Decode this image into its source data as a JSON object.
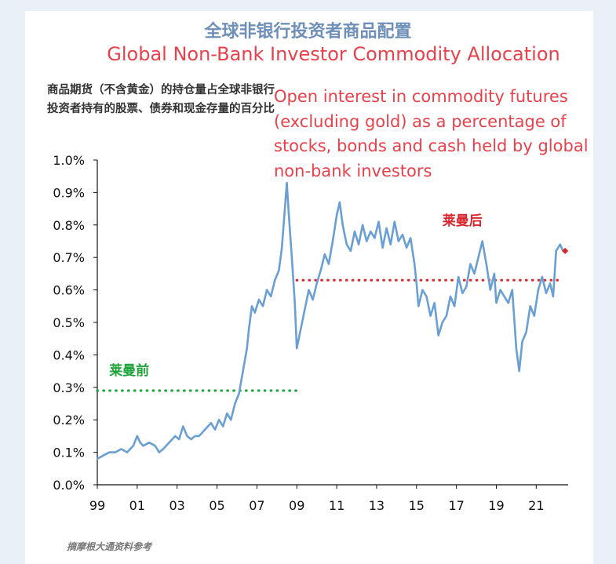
{
  "chart_data": {
    "type": "line",
    "title": "全球非银行投资者商品配置",
    "title_en": "Global Non-Bank Investor Commodity Allocation",
    "ylabel": "商品期货（不含黄金）的持仓量占全球非银行投资者持有的股票、债券和现金存量的百分比",
    "ylabel_en": "Open interest in commodity futures (excluding gold) as a percentage of stocks, bonds and cash held by global non-bank investors",
    "source": "摘摩根大通资料参考",
    "xlim": [
      1999,
      2022.6
    ],
    "ylim": [
      0.0,
      1.0
    ],
    "x_ticks": [
      "99",
      "01",
      "03",
      "05",
      "07",
      "09",
      "11",
      "13",
      "15",
      "17",
      "19",
      "21"
    ],
    "y_ticks": [
      "0.0%",
      "0.1%",
      "0.2%",
      "0.3%",
      "0.4%",
      "0.5%",
      "0.6%",
      "0.7%",
      "0.8%",
      "0.9%",
      "1.0%"
    ],
    "grid": false,
    "series": [
      {
        "color": "#6a9fd4",
        "x": [
          1999.0,
          1999.3,
          1999.6,
          1999.9,
          2000.2,
          2000.5,
          2000.8,
          2001.0,
          2001.15,
          2001.3,
          2001.6,
          2001.9,
          2002.1,
          2002.3,
          2002.6,
          2002.9,
          2003.1,
          2003.3,
          2003.5,
          2003.7,
          2003.9,
          2004.1,
          2004.4,
          2004.7,
          2004.9,
          2005.1,
          2005.3,
          2005.5,
          2005.7,
          2005.9,
          2006.1,
          2006.3,
          2006.5,
          2006.6,
          2006.75,
          2006.9,
          2007.1,
          2007.3,
          2007.5,
          2007.7,
          2007.9,
          2008.1,
          2008.25,
          2008.4,
          2008.5,
          2008.6,
          2008.75,
          2008.9,
          2009.0,
          2009.2,
          2009.4,
          2009.6,
          2009.8,
          2010.0,
          2010.2,
          2010.4,
          2010.6,
          2010.8,
          2011.0,
          2011.15,
          2011.3,
          2011.5,
          2011.7,
          2011.9,
          2012.1,
          2012.3,
          2012.5,
          2012.7,
          2012.9,
          2013.1,
          2013.3,
          2013.5,
          2013.7,
          2013.9,
          2014.1,
          2014.3,
          2014.5,
          2014.7,
          2014.9,
          2015.0,
          2015.1,
          2015.3,
          2015.5,
          2015.7,
          2015.9,
          2016.1,
          2016.3,
          2016.5,
          2016.7,
          2016.9,
          2017.1,
          2017.3,
          2017.5,
          2017.7,
          2017.9,
          2018.1,
          2018.3,
          2018.5,
          2018.7,
          2018.9,
          2019.0,
          2019.2,
          2019.4,
          2019.6,
          2019.8,
          2020.0,
          2020.15,
          2020.3,
          2020.5,
          2020.7,
          2020.9,
          2021.1,
          2021.3,
          2021.5,
          2021.7,
          2021.85,
          2022.0,
          2022.2,
          2022.35
        ],
        "values": [
          0.08,
          0.09,
          0.1,
          0.1,
          0.11,
          0.1,
          0.12,
          0.15,
          0.13,
          0.12,
          0.13,
          0.12,
          0.1,
          0.11,
          0.13,
          0.15,
          0.14,
          0.18,
          0.15,
          0.14,
          0.15,
          0.15,
          0.17,
          0.19,
          0.17,
          0.2,
          0.18,
          0.22,
          0.2,
          0.25,
          0.28,
          0.35,
          0.42,
          0.48,
          0.55,
          0.53,
          0.57,
          0.55,
          0.6,
          0.58,
          0.63,
          0.66,
          0.73,
          0.85,
          0.93,
          0.83,
          0.7,
          0.56,
          0.42,
          0.48,
          0.54,
          0.6,
          0.57,
          0.62,
          0.66,
          0.71,
          0.68,
          0.75,
          0.83,
          0.87,
          0.8,
          0.74,
          0.72,
          0.78,
          0.74,
          0.8,
          0.75,
          0.78,
          0.76,
          0.81,
          0.73,
          0.79,
          0.74,
          0.81,
          0.75,
          0.77,
          0.73,
          0.76,
          0.68,
          0.62,
          0.55,
          0.6,
          0.58,
          0.52,
          0.56,
          0.46,
          0.5,
          0.52,
          0.58,
          0.55,
          0.64,
          0.59,
          0.61,
          0.68,
          0.65,
          0.7,
          0.75,
          0.68,
          0.6,
          0.65,
          0.56,
          0.6,
          0.58,
          0.56,
          0.6,
          0.42,
          0.35,
          0.44,
          0.47,
          0.55,
          0.52,
          0.6,
          0.64,
          0.59,
          0.62,
          0.58,
          0.72,
          0.74,
          0.72
        ]
      }
    ],
    "annotations": [
      {
        "text": "莱曼前",
        "color": "#1fa33a",
        "level": 0.29,
        "from": 1999.0,
        "to": 2009.0
      },
      {
        "text": "莱曼后",
        "color": "#d9262e",
        "level": 0.63,
        "from": 2009.0,
        "to": 2022.3
      }
    ],
    "end_marker": {
      "x": 2022.45,
      "y": 0.72,
      "color": "#d9262e"
    }
  }
}
